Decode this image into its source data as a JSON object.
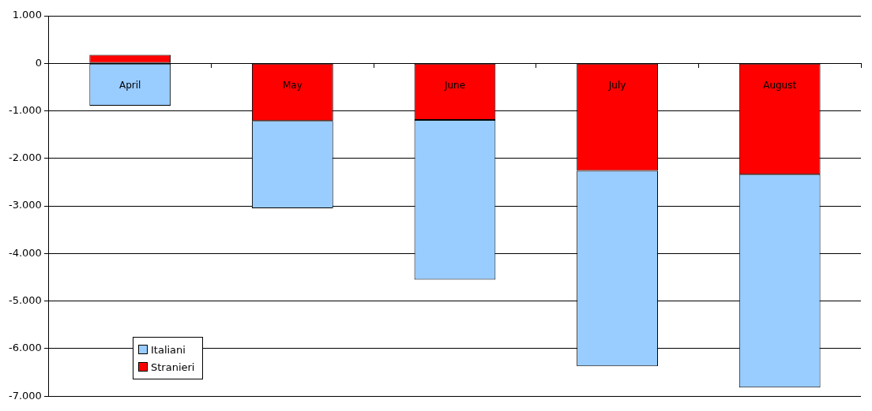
{
  "chart_data": {
    "type": "bar",
    "stacked": true,
    "categories": [
      "April",
      "May",
      "June",
      "July",
      "August"
    ],
    "series": [
      {
        "name": "Stranieri",
        "color": "#ff0000",
        "values": [
          180,
          -1210,
          -1190,
          -2260,
          -2340
        ]
      },
      {
        "name": "Italiani",
        "color": "#99ccff",
        "values": [
          -890,
          -1840,
          -3360,
          -4110,
          -4480
        ]
      }
    ],
    "ylim": [
      -7000,
      1000
    ],
    "yticks": [
      {
        "value": 1000,
        "label": "1.000"
      },
      0,
      {
        "value": -1000,
        "label": "-1.000"
      },
      {
        "value": -2000,
        "label": "-2.000"
      },
      {
        "value": -3000,
        "label": "-3.000"
      },
      {
        "value": -4000,
        "label": "-4.000"
      },
      {
        "value": -5000,
        "label": "-5.000"
      },
      {
        "value": -6000,
        "label": "-6.000"
      },
      {
        "value": -7000,
        "label": "-7.000"
      }
    ],
    "grid": "y",
    "legend": "bottom left"
  }
}
